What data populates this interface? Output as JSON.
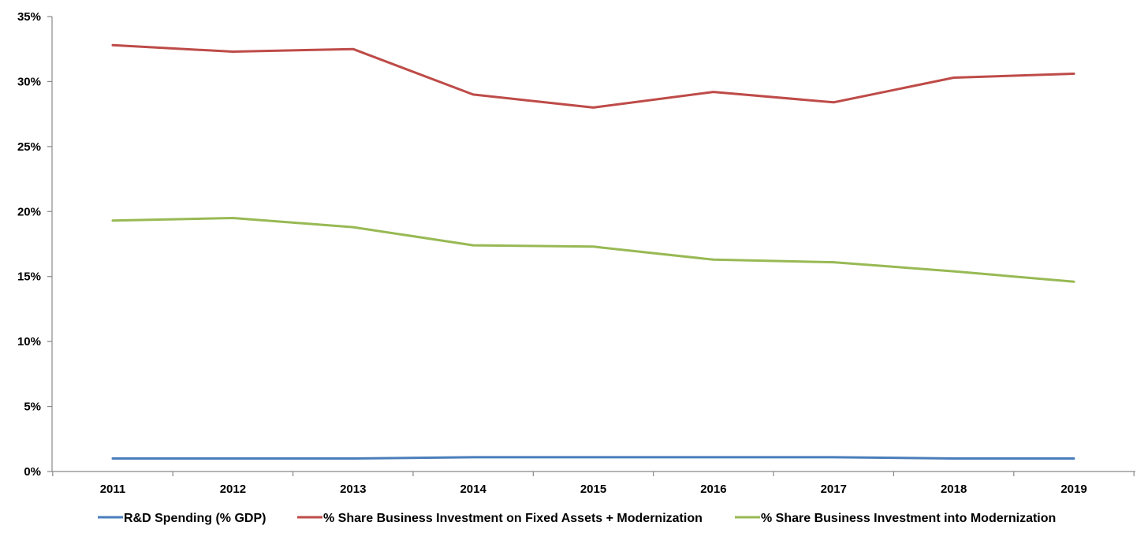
{
  "chart_data": {
    "type": "line",
    "title": "",
    "xlabel": "",
    "ylabel": "",
    "categories": [
      "2011",
      "2012",
      "2013",
      "2014",
      "2015",
      "2016",
      "2017",
      "2018",
      "2019"
    ],
    "ylim": [
      0,
      35
    ],
    "y_ticks": [
      0,
      5,
      10,
      15,
      20,
      25,
      30,
      35
    ],
    "y_tick_labels": [
      "0%",
      "5%",
      "10%",
      "15%",
      "20%",
      "25%",
      "30%",
      "35%"
    ],
    "grid": false,
    "legend_position": "bottom",
    "series": [
      {
        "name": "R&D Spending (% GDP)",
        "color": "#4a7ebb",
        "values": [
          1.0,
          1.0,
          1.0,
          1.1,
          1.1,
          1.1,
          1.1,
          1.0,
          1.0
        ]
      },
      {
        "name": "% Share Business Investment on Fixed Assets + Modernization",
        "color": "#be4b48",
        "values": [
          32.8,
          32.3,
          32.5,
          29.0,
          28.0,
          29.2,
          28.4,
          30.3,
          30.6
        ]
      },
      {
        "name": "% Share Business Investment into Modernization",
        "color": "#98b954",
        "values": [
          19.3,
          19.5,
          18.8,
          17.4,
          17.3,
          16.3,
          16.1,
          15.4,
          14.6
        ]
      }
    ]
  }
}
